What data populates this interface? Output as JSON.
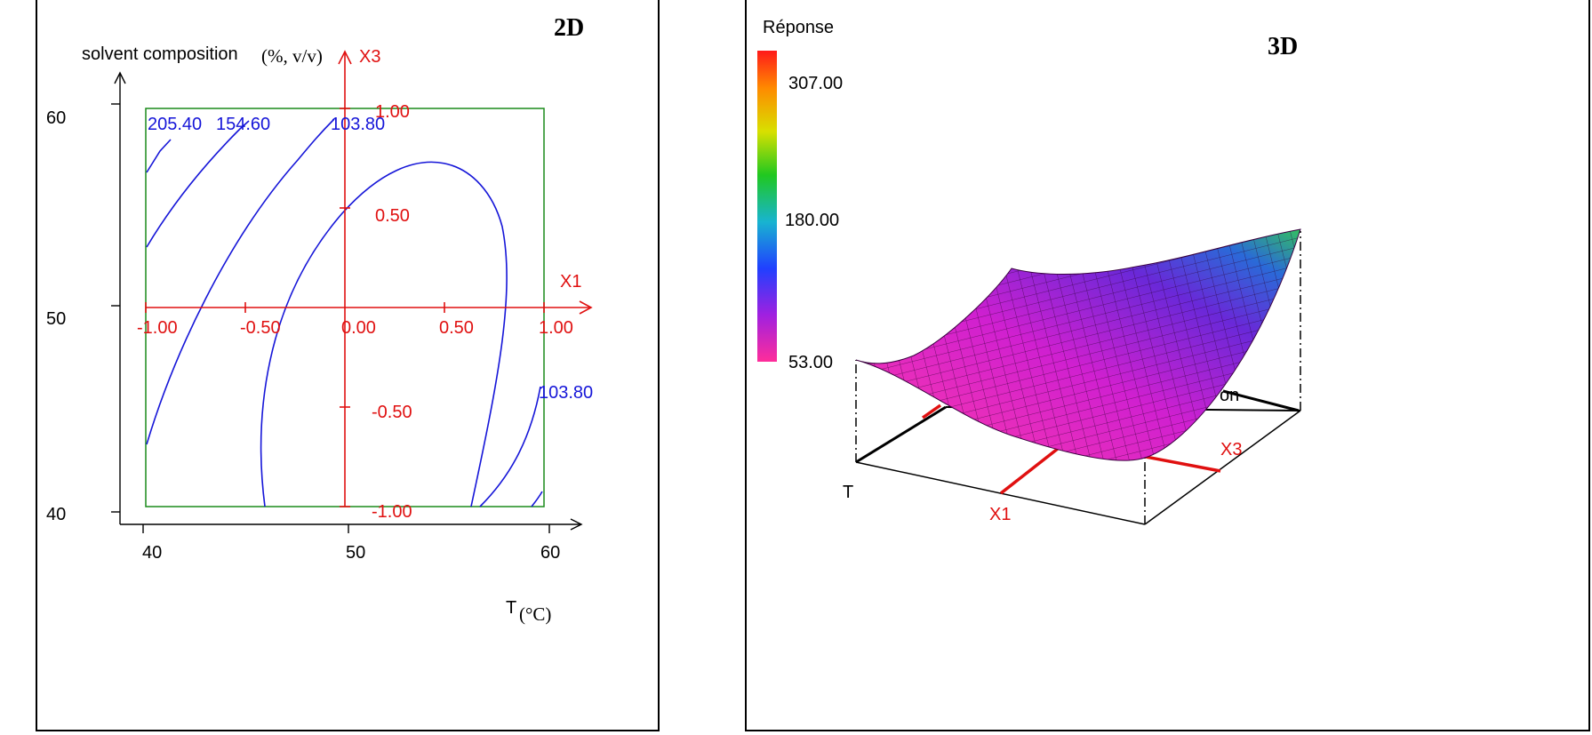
{
  "chart_data": [
    {
      "type": "contour",
      "title": "2D",
      "xlabel": "T",
      "xlabel_unit": "(°C)",
      "ylabel": "solvent composition",
      "ylabel_unit": "(%, v/v)",
      "xlim": [
        40,
        60
      ],
      "ylim": [
        40,
        60
      ],
      "x_ticks": [
        "40",
        "50",
        "60"
      ],
      "y_ticks": [
        "40",
        "50",
        "60"
      ],
      "coded_axes": {
        "x_name": "X1",
        "y_name": "X3",
        "x_ticks": [
          "-1.00",
          "-0.50",
          "0.00",
          "0.50",
          "1.00"
        ],
        "y_ticks": [
          "-1.00",
          "-0.50",
          "0.50",
          "1.00"
        ]
      },
      "contour_levels": [
        "205.40",
        "154.60",
        "103.80",
        "103.80"
      ]
    },
    {
      "type": "surface",
      "title": "3D",
      "colorbar_title": "Réponse",
      "colorbar_ticks": [
        "307.00",
        "180.00",
        "53.00"
      ],
      "zlim": [
        53,
        307
      ],
      "axis_labels": {
        "x": "X1",
        "y": "X3",
        "t": "T",
        "s": "on"
      }
    }
  ]
}
